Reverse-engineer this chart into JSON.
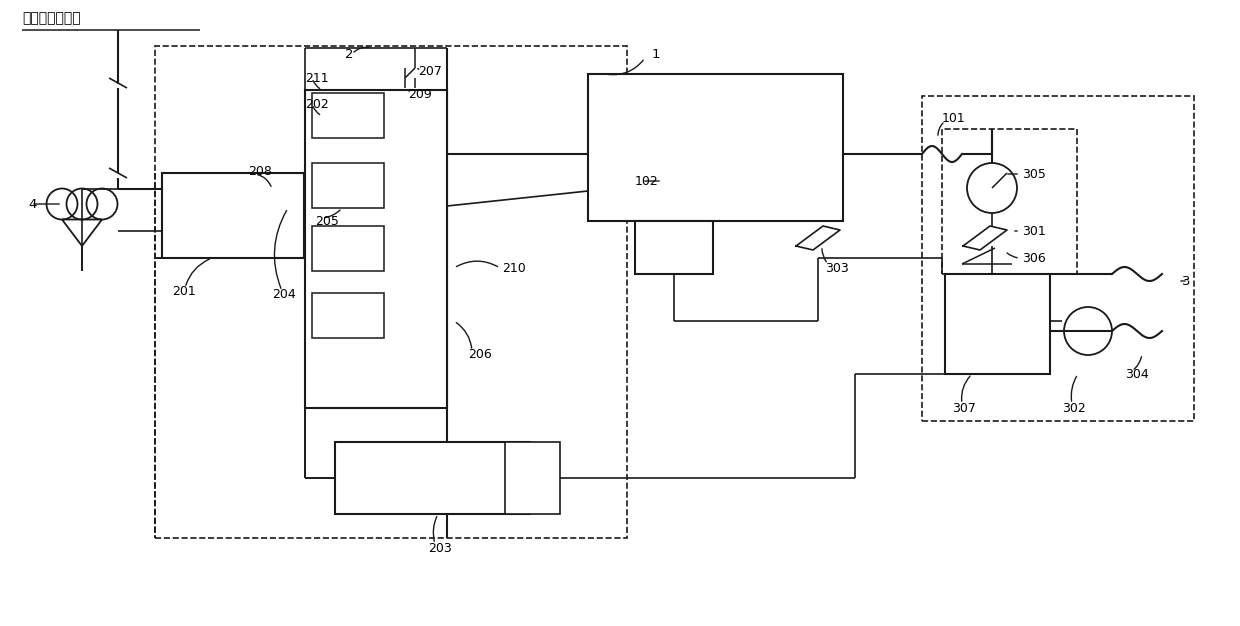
{
  "bg_color": "#ffffff",
  "line_color": "#1a1a1a",
  "fig_width": 12.4,
  "fig_height": 6.26,
  "top_label": "升压站高压母线"
}
